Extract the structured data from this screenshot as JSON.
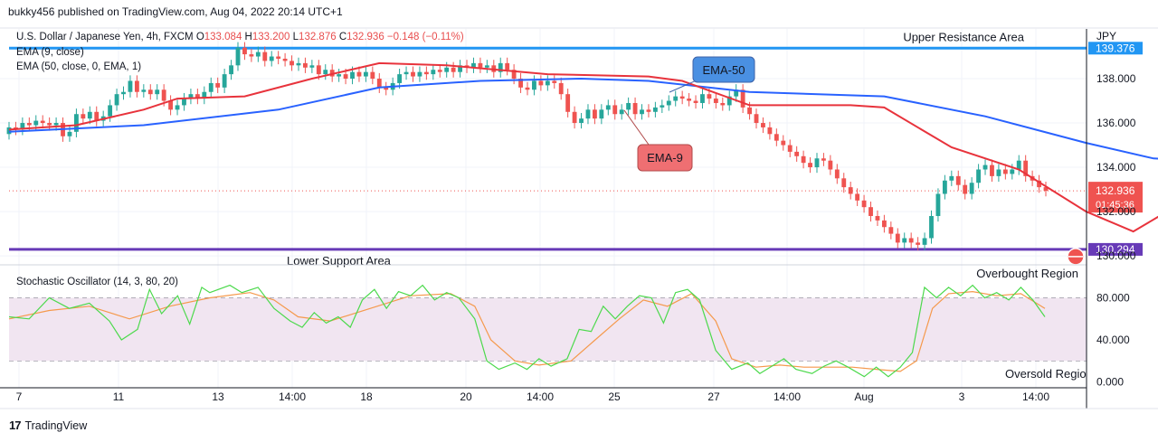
{
  "header": {
    "caption": "bukky456 published on TradingView.com, Aug 04, 2022 20:14 UTC+1"
  },
  "legend": {
    "symbol": "U.S. Dollar / Japanese Yen, 4h, FXCM",
    "o_label": "O",
    "o_value": "133.084",
    "h_label": "H",
    "h_value": "133.200",
    "l_label": "L",
    "l_value": "132.876",
    "c_label": "C",
    "c_value": "132.936",
    "change": "−0.148 (−0.11%)",
    "ema9": "EMA (9, close)",
    "ema50": "EMA (50, close, 0, EMA, 1)"
  },
  "footer": {
    "brand": "TradingView"
  },
  "chart_data": {
    "type": "candlestick",
    "currency": "JPY",
    "colors": {
      "up": "#26a69a",
      "down": "#ef5350",
      "ema9": "#e8333c",
      "ema50": "#2962ff",
      "resistance": "#2196f3",
      "support": "#673ab7",
      "stoch_k": "#4cd94c",
      "stoch_d": "#f5994c"
    },
    "price_ticks": [
      "138.000",
      "136.000",
      "134.000",
      "132.000",
      "130.000"
    ],
    "price_ylim": [
      129.8,
      140.0
    ],
    "x_ticks": [
      "7",
      "11",
      "13",
      "14:00",
      "18",
      "20",
      "14:00",
      "25",
      "27",
      "14:00",
      "Aug",
      "3",
      "14:00"
    ],
    "current_price": {
      "value": 132.936,
      "label": "132.936",
      "countdown": "01:45:36"
    },
    "levels": [
      {
        "label": "Upper Resistance Area",
        "value": 139.376,
        "tag": "139.376"
      },
      {
        "label": "Lower Support Area",
        "value": 130.294,
        "tag": "130.294"
      }
    ],
    "annotations": [
      {
        "text": "EMA-50"
      },
      {
        "text": "EMA-9"
      }
    ],
    "ema50_anchors": [
      [
        0,
        135.6
      ],
      [
        20,
        135.9
      ],
      [
        40,
        136.6
      ],
      [
        55,
        137.6
      ],
      [
        70,
        137.9
      ],
      [
        85,
        138.0
      ],
      [
        95,
        137.9
      ],
      [
        110,
        137.4
      ],
      [
        130,
        137.2
      ],
      [
        145,
        136.3
      ],
      [
        160,
        135.1
      ],
      [
        170,
        134.4
      ],
      [
        180,
        134.3
      ],
      [
        184,
        134.1
      ]
    ],
    "ema9_anchors": [
      [
        0,
        135.7
      ],
      [
        10,
        135.9
      ],
      [
        20,
        136.6
      ],
      [
        25,
        137.1
      ],
      [
        35,
        137.2
      ],
      [
        45,
        138.0
      ],
      [
        55,
        138.7
      ],
      [
        65,
        138.6
      ],
      [
        80,
        138.2
      ],
      [
        95,
        138.1
      ],
      [
        100,
        137.9
      ],
      [
        110,
        136.8
      ],
      [
        125,
        136.8
      ],
      [
        130,
        136.7
      ],
      [
        140,
        134.9
      ],
      [
        150,
        133.9
      ],
      [
        160,
        132.0
      ],
      [
        167,
        131.1
      ],
      [
        172,
        132.0
      ],
      [
        180,
        133.6
      ],
      [
        184,
        133.2
      ]
    ],
    "candles": [
      [
        135.5,
        135.8
      ],
      [
        135.8,
        135.7
      ],
      [
        135.7,
        136.0
      ],
      [
        136.0,
        135.9
      ],
      [
        135.9,
        136.1
      ],
      [
        136.1,
        136.0
      ],
      [
        136.0,
        135.9
      ],
      [
        135.9,
        136.0
      ],
      [
        136.0,
        135.4
      ],
      [
        135.4,
        135.6
      ],
      [
        135.6,
        136.4
      ],
      [
        136.4,
        136.2
      ],
      [
        136.2,
        136.5
      ],
      [
        136.5,
        136.1
      ],
      [
        136.1,
        136.3
      ],
      [
        136.3,
        136.8
      ],
      [
        136.8,
        137.3
      ],
      [
        137.3,
        137.4
      ],
      [
        137.4,
        137.9
      ],
      [
        137.9,
        137.4
      ],
      [
        137.4,
        137.5
      ],
      [
        137.5,
        137.3
      ],
      [
        137.3,
        137.5
      ],
      [
        137.5,
        137.0
      ],
      [
        137.0,
        136.6
      ],
      [
        136.6,
        136.8
      ],
      [
        136.8,
        137.1
      ],
      [
        137.1,
        137.3
      ],
      [
        137.3,
        137.1
      ],
      [
        137.1,
        137.4
      ],
      [
        137.4,
        137.8
      ],
      [
        137.8,
        137.6
      ],
      [
        137.6,
        138.2
      ],
      [
        138.2,
        138.6
      ],
      [
        138.6,
        139.4
      ],
      [
        139.4,
        139.1
      ],
      [
        139.1,
        139.0
      ],
      [
        139.0,
        139.2
      ],
      [
        139.2,
        138.8
      ],
      [
        138.8,
        139.0
      ],
      [
        139.0,
        138.9
      ],
      [
        138.9,
        138.8
      ],
      [
        138.8,
        138.6
      ],
      [
        138.6,
        138.7
      ],
      [
        138.7,
        138.5
      ],
      [
        138.5,
        138.6
      ],
      [
        138.6,
        138.2
      ],
      [
        138.2,
        138.4
      ],
      [
        138.4,
        138.1
      ],
      [
        138.1,
        138.2
      ],
      [
        138.2,
        138.0
      ],
      [
        138.0,
        138.3
      ],
      [
        138.3,
        138.1
      ],
      [
        138.1,
        138.3
      ],
      [
        138.3,
        138.0
      ],
      [
        138.0,
        137.6
      ],
      [
        137.6,
        137.5
      ],
      [
        137.5,
        137.8
      ],
      [
        137.8,
        138.2
      ],
      [
        138.2,
        138.3
      ],
      [
        138.3,
        138.1
      ],
      [
        138.1,
        138.3
      ],
      [
        138.3,
        138.2
      ],
      [
        138.2,
        138.4
      ],
      [
        138.4,
        138.3
      ],
      [
        138.3,
        138.5
      ],
      [
        138.5,
        138.3
      ],
      [
        138.3,
        138.6
      ],
      [
        138.6,
        138.5
      ],
      [
        138.5,
        138.7
      ],
      [
        138.7,
        138.5
      ],
      [
        138.5,
        138.6
      ],
      [
        138.6,
        138.3
      ],
      [
        138.3,
        138.7
      ],
      [
        138.7,
        138.4
      ],
      [
        138.4,
        138.0
      ],
      [
        138.0,
        137.6
      ],
      [
        137.6,
        137.5
      ],
      [
        137.5,
        137.9
      ],
      [
        137.9,
        137.7
      ],
      [
        137.7,
        137.9
      ],
      [
        137.9,
        137.8
      ],
      [
        137.8,
        137.3
      ],
      [
        137.3,
        136.5
      ],
      [
        136.5,
        136.0
      ],
      [
        136.0,
        136.2
      ],
      [
        136.2,
        136.6
      ],
      [
        136.6,
        136.2
      ],
      [
        136.2,
        136.6
      ],
      [
        136.6,
        136.8
      ],
      [
        136.8,
        136.4
      ],
      [
        136.4,
        136.6
      ],
      [
        136.6,
        136.9
      ],
      [
        136.9,
        136.4
      ],
      [
        136.4,
        136.6
      ],
      [
        136.6,
        136.5
      ],
      [
        136.5,
        136.7
      ],
      [
        136.7,
        136.8
      ],
      [
        136.8,
        137.0
      ],
      [
        137.0,
        137.2
      ],
      [
        137.2,
        137.1
      ],
      [
        137.1,
        137.0
      ],
      [
        137.0,
        136.9
      ],
      [
        136.9,
        137.3
      ],
      [
        137.3,
        137.1
      ],
      [
        137.1,
        136.9
      ],
      [
        136.9,
        136.8
      ],
      [
        136.8,
        137.2
      ],
      [
        137.2,
        137.5
      ],
      [
        137.5,
        136.7
      ],
      [
        136.7,
        136.4
      ],
      [
        136.4,
        136.0
      ],
      [
        136.0,
        135.8
      ],
      [
        135.8,
        135.5
      ],
      [
        135.5,
        135.2
      ],
      [
        135.2,
        135.0
      ],
      [
        135.0,
        134.7
      ],
      [
        134.7,
        134.5
      ],
      [
        134.5,
        134.2
      ],
      [
        134.2,
        134.0
      ],
      [
        134.0,
        134.4
      ],
      [
        134.4,
        134.3
      ],
      [
        134.3,
        133.9
      ],
      [
        133.9,
        133.5
      ],
      [
        133.5,
        133.1
      ],
      [
        133.1,
        132.8
      ],
      [
        132.8,
        132.5
      ],
      [
        132.5,
        132.2
      ],
      [
        132.2,
        131.8
      ],
      [
        131.8,
        131.6
      ],
      [
        131.6,
        131.3
      ],
      [
        131.3,
        131.0
      ],
      [
        131.0,
        130.6
      ],
      [
        130.6,
        130.8
      ],
      [
        130.8,
        130.6
      ],
      [
        130.6,
        130.5
      ],
      [
        130.5,
        130.8
      ],
      [
        130.8,
        131.8
      ],
      [
        131.8,
        132.8
      ],
      [
        132.8,
        133.4
      ],
      [
        133.4,
        133.6
      ],
      [
        133.6,
        133.2
      ],
      [
        133.2,
        132.8
      ],
      [
        132.8,
        133.3
      ],
      [
        133.3,
        133.9
      ],
      [
        133.9,
        134.1
      ],
      [
        134.1,
        133.6
      ],
      [
        133.6,
        133.9
      ],
      [
        133.9,
        133.7
      ],
      [
        133.7,
        133.9
      ],
      [
        133.9,
        134.3
      ],
      [
        134.3,
        133.6
      ],
      [
        133.6,
        133.4
      ],
      [
        133.4,
        133.1
      ],
      [
        133.1,
        132.936
      ]
    ],
    "stoch_ticks": [
      "80.000",
      "40.000",
      "0.000"
    ],
    "stoch_ylim": [
      -3,
      108
    ],
    "stoch_levels": {
      "upper": 80,
      "lower": 20
    },
    "stoch_title": "Stochastic Oscillator (14, 3, 80, 20)",
    "stoch_upper_label": "Overbought Region",
    "stoch_lower_label": "Oversold Regio",
    "stoch_k": [
      [
        0,
        62
      ],
      [
        5,
        60
      ],
      [
        10,
        80
      ],
      [
        15,
        70
      ],
      [
        20,
        75
      ],
      [
        25,
        58
      ],
      [
        28,
        40
      ],
      [
        32,
        50
      ],
      [
        35,
        88
      ],
      [
        38,
        65
      ],
      [
        42,
        82
      ],
      [
        45,
        55
      ],
      [
        48,
        90
      ],
      [
        50,
        85
      ],
      [
        55,
        92
      ],
      [
        58,
        85
      ],
      [
        62,
        90
      ],
      [
        66,
        70
      ],
      [
        70,
        58
      ],
      [
        73,
        52
      ],
      [
        76,
        66
      ],
      [
        79,
        56
      ],
      [
        82,
        62
      ],
      [
        85,
        52
      ],
      [
        88,
        78
      ],
      [
        91,
        88
      ],
      [
        94,
        70
      ],
      [
        97,
        86
      ],
      [
        100,
        82
      ],
      [
        103,
        92
      ],
      [
        106,
        78
      ],
      [
        109,
        85
      ],
      [
        112,
        80
      ],
      [
        116,
        60
      ],
      [
        119,
        20
      ],
      [
        122,
        12
      ],
      [
        126,
        18
      ],
      [
        129,
        12
      ],
      [
        132,
        22
      ],
      [
        135,
        15
      ],
      [
        139,
        22
      ],
      [
        142,
        50
      ],
      [
        145,
        48
      ],
      [
        148,
        72
      ],
      [
        151,
        60
      ],
      [
        154,
        72
      ],
      [
        157,
        82
      ],
      [
        160,
        80
      ],
      [
        163,
        56
      ],
      [
        166,
        85
      ],
      [
        169,
        88
      ],
      [
        172,
        78
      ],
      [
        176,
        30
      ],
      [
        180,
        12
      ],
      [
        184,
        18
      ],
      [
        187,
        8
      ],
      [
        190,
        15
      ],
      [
        193,
        22
      ],
      [
        196,
        12
      ],
      [
        200,
        8
      ],
      [
        203,
        15
      ],
      [
        206,
        20
      ],
      [
        209,
        14
      ],
      [
        213,
        5
      ],
      [
        216,
        14
      ],
      [
        219,
        5
      ],
      [
        222,
        14
      ],
      [
        225,
        28
      ],
      [
        228,
        90
      ],
      [
        231,
        80
      ],
      [
        234,
        90
      ],
      [
        237,
        82
      ],
      [
        240,
        92
      ],
      [
        243,
        80
      ],
      [
        246,
        85
      ],
      [
        249,
        78
      ],
      [
        252,
        90
      ],
      [
        255,
        78
      ],
      [
        258,
        62
      ]
    ],
    "stoch_d": [
      [
        0,
        60
      ],
      [
        10,
        68
      ],
      [
        20,
        72
      ],
      [
        30,
        60
      ],
      [
        40,
        72
      ],
      [
        50,
        80
      ],
      [
        60,
        85
      ],
      [
        66,
        78
      ],
      [
        72,
        62
      ],
      [
        80,
        58
      ],
      [
        90,
        70
      ],
      [
        100,
        82
      ],
      [
        110,
        84
      ],
      [
        116,
        72
      ],
      [
        120,
        40
      ],
      [
        126,
        20
      ],
      [
        132,
        16
      ],
      [
        140,
        20
      ],
      [
        146,
        40
      ],
      [
        152,
        60
      ],
      [
        158,
        78
      ],
      [
        164,
        72
      ],
      [
        170,
        84
      ],
      [
        176,
        58
      ],
      [
        180,
        22
      ],
      [
        186,
        14
      ],
      [
        192,
        16
      ],
      [
        198,
        14
      ],
      [
        204,
        14
      ],
      [
        210,
        14
      ],
      [
        216,
        12
      ],
      [
        222,
        10
      ],
      [
        226,
        20
      ],
      [
        230,
        70
      ],
      [
        234,
        84
      ],
      [
        240,
        86
      ],
      [
        246,
        82
      ],
      [
        252,
        84
      ],
      [
        258,
        70
      ]
    ]
  }
}
